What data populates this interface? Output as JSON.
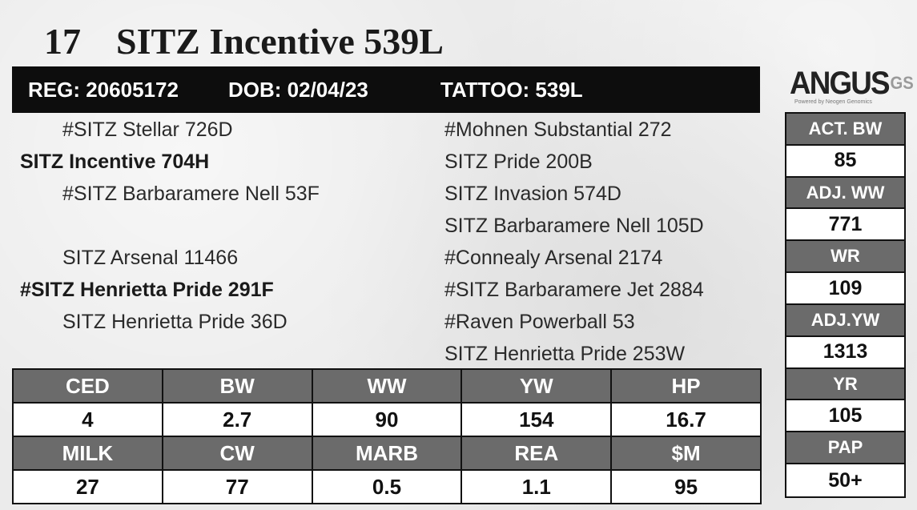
{
  "lot": {
    "number": "17",
    "name": "SITZ Incentive 539L"
  },
  "id_bar": {
    "reg": "REG: 20605172",
    "dob": "DOB: 02/04/23",
    "tattoo": "TATTOO: 539L"
  },
  "pedigree": {
    "sire_sire": "#SITZ Stellar 726D",
    "sire": "SITZ Incentive 704H",
    "sire_dam": "#SITZ Barbaramere Nell 53F",
    "dam_sire": "SITZ Arsenal 11466",
    "dam": "#SITZ Henrietta Pride 291F",
    "dam_dam": "SITZ Henrietta Pride 36D",
    "right": [
      "#Mohnen Substantial 272",
      "SITZ Pride 200B",
      "SITZ Invasion 574D",
      "SITZ Barbaramere Nell 105D",
      "#Connealy Arsenal 2174",
      "#SITZ Barbaramere Jet 2884",
      "#Raven Powerball 53",
      "SITZ Henrietta Pride 253W"
    ]
  },
  "logo": {
    "main": "ANGUS",
    "suffix": "GS",
    "tagline": "Powered by Neogen Genomics"
  },
  "side_stats": [
    {
      "label": "ACT. BW",
      "value": "85"
    },
    {
      "label": "ADJ. WW",
      "value": "771"
    },
    {
      "label": "WR",
      "value": "109"
    },
    {
      "label": "ADJ.YW",
      "value": "1313"
    },
    {
      "label": "YR",
      "value": "105"
    },
    {
      "label": "PAP",
      "value": "50+"
    }
  ],
  "epd_rows": [
    {
      "headers": [
        "CED",
        "BW",
        "WW",
        "YW",
        "HP"
      ],
      "values": [
        "4",
        "2.7",
        "90",
        "154",
        "16.7"
      ]
    },
    {
      "headers": [
        "MILK",
        "CW",
        "MARB",
        "REA",
        "$M"
      ],
      "values": [
        "27",
        "77",
        "0.5",
        "1.1",
        "95"
      ]
    }
  ],
  "colors": {
    "header_gray": "#6b6b6b",
    "bar_black": "#0d0d0d",
    "background": "#ebebeb"
  }
}
